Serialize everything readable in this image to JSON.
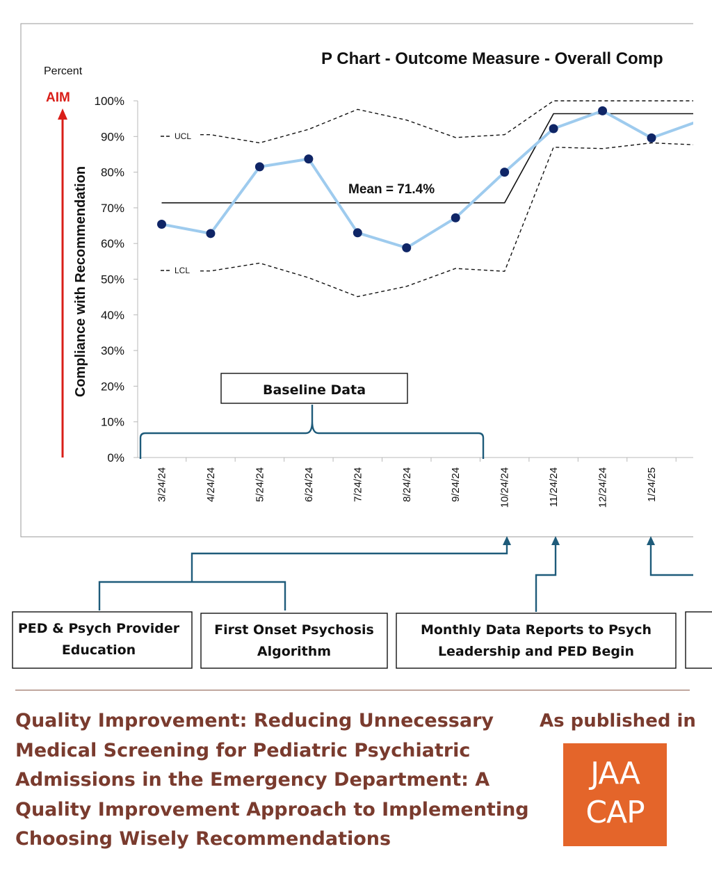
{
  "chart_data": {
    "type": "line",
    "title": "P Chart - Outcome Measure - Overall Comp",
    "y_unit_label": "Percent",
    "ylabel": "Compliance with Recommendation",
    "aim_label": "AIM",
    "ylim": [
      0,
      100
    ],
    "y_ticks": [
      "0%",
      "10%",
      "20%",
      "30%",
      "40%",
      "50%",
      "60%",
      "70%",
      "80%",
      "90%",
      "100%"
    ],
    "x": [
      "3/24/24",
      "4/24/24",
      "5/24/24",
      "6/24/24",
      "7/24/24",
      "8/24/24",
      "9/24/24",
      "10/24/24",
      "11/24/24",
      "12/24/24",
      "1/24/25",
      ""
    ],
    "series": [
      {
        "values": [
          65.4,
          62.8,
          81.5,
          83.7,
          63.0,
          58.8,
          67.2,
          80.0,
          92.2,
          97.2,
          89.6,
          94.5
        ]
      }
    ],
    "mean_line": {
      "label": "Mean = 71.4%",
      "values": [
        71.4,
        71.4,
        71.4,
        71.4,
        71.4,
        71.4,
        71.4,
        71.4,
        96.4,
        96.4,
        96.4,
        96.4
      ]
    },
    "ucl": {
      "label": "UCL",
      "values": [
        90.5,
        90.5,
        88.2,
        92.0,
        97.6,
        94.6,
        89.7,
        90.5,
        100,
        100,
        100,
        100
      ]
    },
    "lcl": {
      "label": "LCL",
      "values": [
        52.3,
        52.3,
        54.5,
        50.4,
        45.1,
        48.0,
        53.0,
        52.2,
        87.0,
        86.6,
        88.2,
        87.6
      ]
    },
    "colors": {
      "series_line": "#9ecbee",
      "series_marker": "#0f2566",
      "aim_arrow": "#d91e18",
      "annotation": "#1e5b7a"
    },
    "annotations": {
      "baseline": "Baseline Data",
      "interventions": [
        "PED & Psych Provider Education",
        "First Onset Psychosis Algorithm",
        "Monthly Data Reports to Psych Leadership and PED Begin"
      ]
    }
  },
  "article": {
    "title": "Quality Improvement: Reducing Unnecessary Medical Screening for Pediatric Psychiatric Admissions in the Emergency Department: A Quality Improvement Approach to Implementing Choosing Wisely Recommendations",
    "published_label": "As published in",
    "journal_logo": [
      "JAA",
      "CAP"
    ],
    "colors": {
      "text": "#7a3b2e",
      "logo_bg": "#e4652a"
    }
  }
}
